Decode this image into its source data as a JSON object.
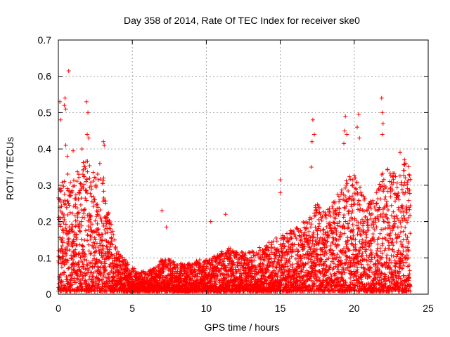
{
  "chart_data": {
    "type": "scatter",
    "title": "Day 358 of 2014, Rate Of TEC Index for receiver ske0",
    "xlabel": "GPS time / hours",
    "ylabel": "ROTI / TECUs",
    "xlim": [
      0,
      25
    ],
    "ylim": [
      0,
      0.7
    ],
    "x_ticks": [
      0,
      5,
      10,
      15,
      20,
      25
    ],
    "y_ticks": [
      0,
      0.1,
      0.2,
      0.3,
      0.4,
      0.5,
      0.6,
      0.7
    ],
    "grid": true,
    "marker": "plus",
    "series": [
      {
        "name": "ROTI",
        "color": "#ff0000",
        "envelope_hours": [
          0,
          0.5,
          1,
          1.5,
          2,
          2.5,
          3,
          3.5,
          4,
          4.5,
          5,
          5.5,
          6,
          6.5,
          7,
          7.5,
          8,
          8.5,
          9,
          9.5,
          10,
          10.5,
          11,
          11.5,
          12,
          12.5,
          13,
          13.5,
          14,
          14.5,
          15,
          15.5,
          16,
          16.5,
          17,
          17.5,
          18,
          18.5,
          19,
          19.5,
          20,
          20.5,
          21,
          21.5,
          22,
          22.5,
          23,
          23.5,
          23.8
        ],
        "envelope_typical_max": [
          0.25,
          0.3,
          0.28,
          0.32,
          0.33,
          0.3,
          0.3,
          0.18,
          0.1,
          0.08,
          0.06,
          0.05,
          0.05,
          0.06,
          0.08,
          0.08,
          0.07,
          0.07,
          0.07,
          0.08,
          0.08,
          0.09,
          0.1,
          0.11,
          0.1,
          0.1,
          0.1,
          0.11,
          0.12,
          0.13,
          0.14,
          0.15,
          0.16,
          0.17,
          0.2,
          0.22,
          0.2,
          0.22,
          0.25,
          0.28,
          0.3,
          0.25,
          0.22,
          0.25,
          0.32,
          0.3,
          0.3,
          0.33,
          0.3
        ],
        "highlighted_points": [
          {
            "x": 0.1,
            "y": 0.53
          },
          {
            "x": 0.15,
            "y": 0.48
          },
          {
            "x": 0.45,
            "y": 0.54
          },
          {
            "x": 0.4,
            "y": 0.52
          },
          {
            "x": 0.5,
            "y": 0.51
          },
          {
            "x": 0.7,
            "y": 0.615
          },
          {
            "x": 0.5,
            "y": 0.41
          },
          {
            "x": 0.6,
            "y": 0.38
          },
          {
            "x": 1.0,
            "y": 0.395
          },
          {
            "x": 1.9,
            "y": 0.53
          },
          {
            "x": 2.0,
            "y": 0.5
          },
          {
            "x": 1.95,
            "y": 0.44
          },
          {
            "x": 2.05,
            "y": 0.43
          },
          {
            "x": 1.6,
            "y": 0.4
          },
          {
            "x": 3.05,
            "y": 0.42
          },
          {
            "x": 3.1,
            "y": 0.41
          },
          {
            "x": 2.8,
            "y": 0.36
          },
          {
            "x": 7.0,
            "y": 0.23
          },
          {
            "x": 7.3,
            "y": 0.185
          },
          {
            "x": 10.3,
            "y": 0.2
          },
          {
            "x": 11.3,
            "y": 0.22
          },
          {
            "x": 15.0,
            "y": 0.315
          },
          {
            "x": 15.0,
            "y": 0.28
          },
          {
            "x": 17.2,
            "y": 0.48
          },
          {
            "x": 17.3,
            "y": 0.44
          },
          {
            "x": 17.15,
            "y": 0.42
          },
          {
            "x": 17.1,
            "y": 0.35
          },
          {
            "x": 19.4,
            "y": 0.49
          },
          {
            "x": 19.35,
            "y": 0.45
          },
          {
            "x": 19.3,
            "y": 0.415
          },
          {
            "x": 19.5,
            "y": 0.44
          },
          {
            "x": 20.3,
            "y": 0.495
          },
          {
            "x": 20.2,
            "y": 0.46
          },
          {
            "x": 20.35,
            "y": 0.43
          },
          {
            "x": 21.85,
            "y": 0.54
          },
          {
            "x": 21.9,
            "y": 0.5
          },
          {
            "x": 21.95,
            "y": 0.47
          },
          {
            "x": 21.9,
            "y": 0.44
          },
          {
            "x": 23.1,
            "y": 0.39
          },
          {
            "x": 23.4,
            "y": 0.37
          }
        ]
      }
    ]
  }
}
